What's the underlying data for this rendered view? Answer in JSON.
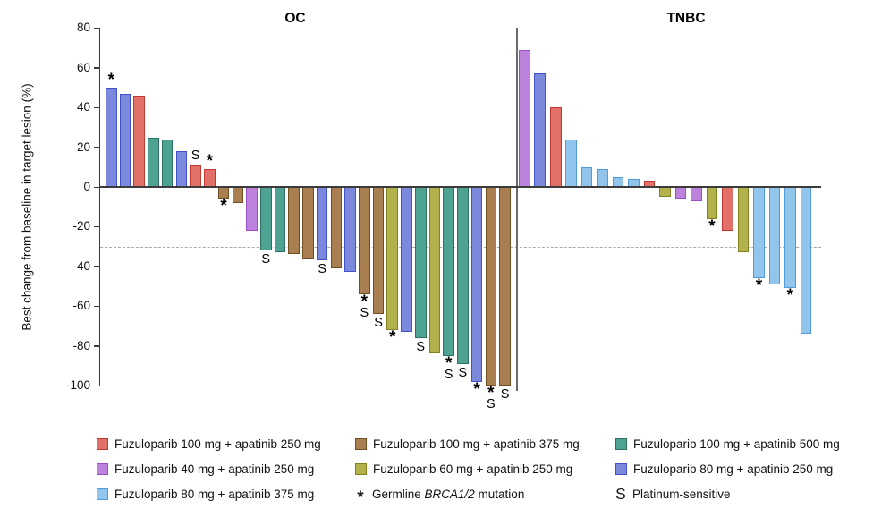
{
  "chart_data": {
    "type": "bar",
    "style": "waterfall",
    "ylabel": "Best change from baseline in target lesion (%)",
    "ylim": [
      -100,
      80
    ],
    "yticks": [
      80,
      60,
      40,
      20,
      0,
      -20,
      -40,
      -60,
      -80,
      -100
    ],
    "reference_lines": [
      20,
      -30
    ],
    "grid": false,
    "annotation_symbols": {
      "asterisk": "*",
      "s": "S"
    },
    "panels": [
      {
        "title": "OC",
        "bars": [
          {
            "value": 50,
            "group": "blue",
            "mark": "*"
          },
          {
            "value": 47,
            "group": "blue",
            "mark": ""
          },
          {
            "value": 46,
            "group": "red",
            "mark": ""
          },
          {
            "value": 25,
            "group": "teal",
            "mark": ""
          },
          {
            "value": 24,
            "group": "teal",
            "mark": ""
          },
          {
            "value": 18,
            "group": "blue",
            "mark": ""
          },
          {
            "value": 11,
            "group": "red",
            "mark": "S"
          },
          {
            "value": 9,
            "group": "red",
            "mark": "*"
          },
          {
            "value": -6,
            "group": "brown",
            "mark": "*"
          },
          {
            "value": -8,
            "group": "brown",
            "mark": ""
          },
          {
            "value": -22,
            "group": "purple",
            "mark": ""
          },
          {
            "value": -32,
            "group": "teal",
            "mark": "S"
          },
          {
            "value": -33,
            "group": "teal",
            "mark": ""
          },
          {
            "value": -34,
            "group": "brown",
            "mark": ""
          },
          {
            "value": -36,
            "group": "brown",
            "mark": ""
          },
          {
            "value": -37,
            "group": "blue",
            "mark": "S"
          },
          {
            "value": -41,
            "group": "brown",
            "mark": ""
          },
          {
            "value": -43,
            "group": "blue",
            "mark": ""
          },
          {
            "value": -54,
            "group": "brown",
            "mark": "*S"
          },
          {
            "value": -64,
            "group": "brown",
            "mark": "S"
          },
          {
            "value": -72,
            "group": "olive",
            "mark": "*"
          },
          {
            "value": -73,
            "group": "blue",
            "mark": ""
          },
          {
            "value": -76,
            "group": "teal",
            "mark": "S"
          },
          {
            "value": -84,
            "group": "olive",
            "mark": ""
          },
          {
            "value": -85,
            "group": "teal",
            "mark": "*S"
          },
          {
            "value": -89,
            "group": "teal",
            "mark": "S"
          },
          {
            "value": -98,
            "group": "blue",
            "mark": "*"
          },
          {
            "value": -100,
            "group": "brown",
            "mark": "*S"
          },
          {
            "value": -100,
            "group": "brown",
            "mark": "S"
          }
        ]
      },
      {
        "title": "TNBC",
        "bars": [
          {
            "value": 69,
            "group": "purple",
            "mark": ""
          },
          {
            "value": 57,
            "group": "blue",
            "mark": ""
          },
          {
            "value": 40,
            "group": "red",
            "mark": ""
          },
          {
            "value": 24,
            "group": "lightblue",
            "mark": ""
          },
          {
            "value": 10,
            "group": "lightblue",
            "mark": ""
          },
          {
            "value": 9,
            "group": "lightblue",
            "mark": ""
          },
          {
            "value": 5,
            "group": "lightblue",
            "mark": ""
          },
          {
            "value": 4,
            "group": "lightblue",
            "mark": ""
          },
          {
            "value": 3,
            "group": "red",
            "mark": ""
          },
          {
            "value": -5,
            "group": "olive",
            "mark": ""
          },
          {
            "value": -6,
            "group": "purple",
            "mark": ""
          },
          {
            "value": -7,
            "group": "purple",
            "mark": ""
          },
          {
            "value": -16,
            "group": "olive",
            "mark": "*"
          },
          {
            "value": -22,
            "group": "red",
            "mark": ""
          },
          {
            "value": -33,
            "group": "olive",
            "mark": ""
          },
          {
            "value": -46,
            "group": "lightblue",
            "mark": "*"
          },
          {
            "value": -49,
            "group": "lightblue",
            "mark": ""
          },
          {
            "value": -51,
            "group": "lightblue",
            "mark": "*"
          },
          {
            "value": -74,
            "group": "lightblue",
            "mark": ""
          }
        ]
      }
    ],
    "legend_columns": [
      {
        "items": [
          {
            "type": "swatch",
            "group": "red",
            "label": "Fuzuloparib 100 mg + apatinib 250 mg"
          },
          {
            "type": "swatch",
            "group": "purple",
            "label": "Fuzuloparib 40 mg + apatinib 250 mg"
          },
          {
            "type": "swatch",
            "group": "lightblue",
            "label": "Fuzuloparib 80 mg + apatinib 375 mg"
          }
        ]
      },
      {
        "items": [
          {
            "type": "swatch",
            "group": "brown",
            "label": "Fuzuloparib 100 mg + apatinib 375 mg"
          },
          {
            "type": "swatch",
            "group": "olive",
            "label": "Fuzuloparib 60 mg + apatinib 250 mg"
          },
          {
            "type": "symbol",
            "symbol": "*",
            "label_prefix": "Germline ",
            "label_italic": "BRCA1/2",
            "label_suffix": " mutation"
          }
        ]
      },
      {
        "items": [
          {
            "type": "swatch",
            "group": "teal",
            "label": "Fuzuloparib 100 mg + apatinib 500 mg"
          },
          {
            "type": "swatch",
            "group": "blue",
            "label": "Fuzuloparib 80 mg + apatinib 250 mg"
          },
          {
            "type": "symbol",
            "symbol": "S",
            "label": "Platinum-sensitive"
          }
        ]
      }
    ]
  },
  "colors": {
    "red": {
      "fill": "#E17168",
      "stroke": "#C03A31"
    },
    "brown": {
      "fill": "#A97E50",
      "stroke": "#6F4F20"
    },
    "teal": {
      "fill": "#4EA292",
      "stroke": "#2E7164"
    },
    "purple": {
      "fill": "#BD82DC",
      "stroke": "#9B4FC8"
    },
    "olive": {
      "fill": "#B2B14B",
      "stroke": "#838321"
    },
    "blue": {
      "fill": "#7C88DB",
      "stroke": "#4053C9"
    },
    "lightblue": {
      "fill": "#92C5EC",
      "stroke": "#4E9CD9"
    },
    "axis": "#3c3c3c",
    "dashed_reference": "#a8a8a8"
  }
}
